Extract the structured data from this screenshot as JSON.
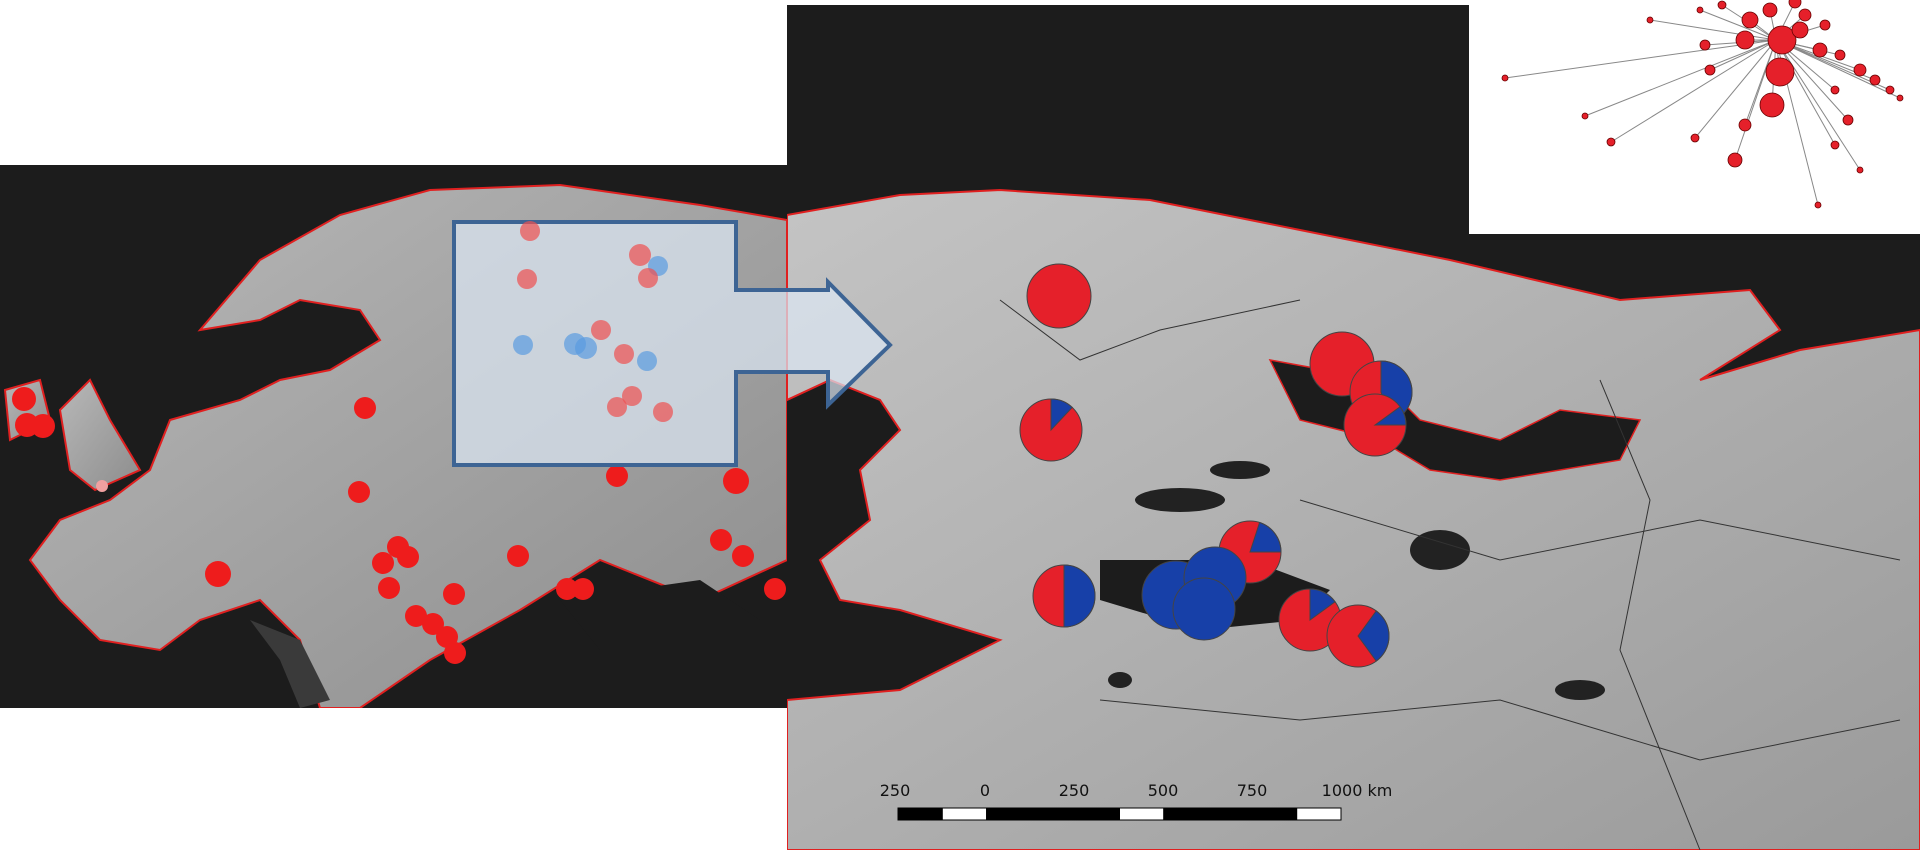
{
  "scale_bar": {
    "labels": [
      "250",
      "0",
      "250",
      "500",
      "750",
      "1000 km"
    ]
  }
}
